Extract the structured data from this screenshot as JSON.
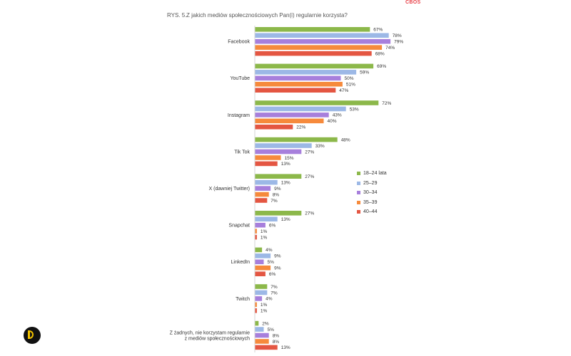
{
  "header": {
    "brand": "CBOS",
    "figure_label": "RYS. 5.",
    "title": "Z jakich mediów społecznościowych Pan(i) regularnie korzysta?"
  },
  "colors": {
    "18–24 lata": "#8cb84a",
    "25–29": "#9cb8e6",
    "30–34": "#a77fdc",
    "35–39": "#f68a3c",
    "40–44": "#e45642"
  },
  "logo": {
    "icon": "d-logo-icon"
  },
  "chart_data": {
    "type": "bar",
    "orientation": "horizontal",
    "title": "Z jakich mediów społecznościowych Pan(i) regularnie korzysta?",
    "categories": [
      "Facebook",
      "YouTube",
      "Instagram",
      "Tik Tok",
      "X (dawniej Twitter)",
      "Snapchat",
      "LinkedIn",
      "Twitch",
      "Z żadnych, nie korzystam regularnie\nz mediów społecznościowych"
    ],
    "series": [
      {
        "name": "18–24 lata",
        "values": [
          67,
          69,
          72,
          48,
          27,
          27,
          4,
          7,
          2
        ]
      },
      {
        "name": "25–29",
        "values": [
          78,
          59,
          53,
          33,
          13,
          13,
          9,
          7,
          5
        ]
      },
      {
        "name": "30–34",
        "values": [
          79,
          50,
          43,
          27,
          9,
          6,
          5,
          4,
          8
        ]
      },
      {
        "name": "35–39",
        "values": [
          74,
          51,
          40,
          15,
          8,
          1,
          9,
          1,
          8
        ]
      },
      {
        "name": "40–44",
        "values": [
          68,
          47,
          22,
          13,
          7,
          1,
          6,
          1,
          13
        ]
      }
    ],
    "value_suffix": "%",
    "xlim": [
      0,
      100
    ],
    "grid": false,
    "legend_position": "right"
  }
}
